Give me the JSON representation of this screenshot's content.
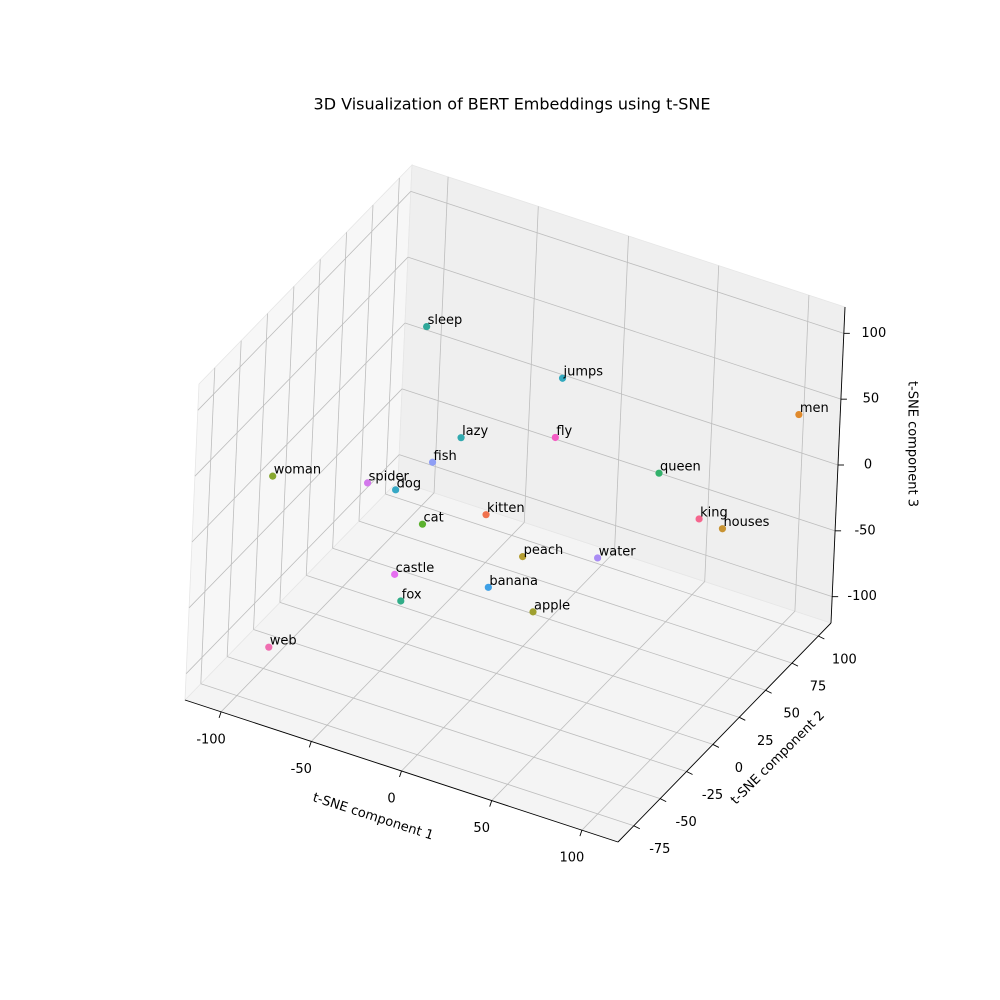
{
  "chart_data": {
    "type": "scatter3d",
    "title": "3D Visualization of BERT Embeddings using t-SNE",
    "xlabel": "t-SNE component 1",
    "ylabel": "t-SNE component 2",
    "zlabel": "t-SNE component 3",
    "xlim": [
      -120,
      120
    ],
    "ylim": [
      -90,
      112
    ],
    "zlim": [
      -120,
      120
    ],
    "xticks": [
      -100,
      -50,
      0,
      50,
      100
    ],
    "yticks": [
      -75,
      -50,
      -25,
      0,
      25,
      50,
      75,
      100
    ],
    "zticks": [
      -100,
      -50,
      0,
      50,
      100
    ],
    "grid": true,
    "points": [
      {
        "label": "sleep",
        "x": -74,
        "y": 50,
        "z": 69,
        "color": "#2fa89a"
      },
      {
        "label": "jumps",
        "x": -4,
        "y": 60,
        "z": 53,
        "color": "#33a9be"
      },
      {
        "label": "men",
        "x": 104,
        "y": 100,
        "z": 41,
        "color": "#e08a2c"
      },
      {
        "label": "lazy",
        "x": -47,
        "y": 40,
        "z": 5,
        "color": "#32aab0"
      },
      {
        "label": "fly",
        "x": 10,
        "y": 30,
        "z": 39,
        "color": "#f45cc4"
      },
      {
        "label": "fish",
        "x": -51,
        "y": 20,
        "z": 1,
        "color": "#8e9ef5"
      },
      {
        "label": "queen",
        "x": 62,
        "y": 40,
        "z": 27,
        "color": "#33b16b"
      },
      {
        "label": "woman",
        "x": -94,
        "y": -60,
        "z": 37,
        "color": "#87a72f"
      },
      {
        "label": "spider",
        "x": -75,
        "y": 0,
        "z": -9,
        "color": "#d378ec"
      },
      {
        "label": "dog",
        "x": -65,
        "y": 10,
        "z": -18,
        "color": "#36a8c5"
      },
      {
        "label": "kitten",
        "x": -4,
        "y": -10,
        "z": 7,
        "color": "#f0724e"
      },
      {
        "label": "king",
        "x": 96,
        "y": 20,
        "z": 24,
        "color": "#f5668e"
      },
      {
        "label": "houses",
        "x": 98,
        "y": 40,
        "z": 1,
        "color": "#c89332"
      },
      {
        "label": "cat",
        "x": -33,
        "y": -20,
        "z": -5,
        "color": "#5bb12f"
      },
      {
        "label": "peach",
        "x": 28,
        "y": -30,
        "z": 6,
        "color": "#b49d31"
      },
      {
        "label": "water",
        "x": 58,
        "y": -10,
        "z": 2,
        "color": "#a98cf4"
      },
      {
        "label": "castle",
        "x": -36,
        "y": -40,
        "z": -28,
        "color": "#e56ef0"
      },
      {
        "label": "banana",
        "x": 21,
        "y": -50,
        "z": -4,
        "color": "#3ea0e6"
      },
      {
        "label": "fox",
        "x": -21,
        "y": -60,
        "z": -25,
        "color": "#31ad88"
      },
      {
        "label": "apple",
        "x": 57,
        "y": -70,
        "z": 10,
        "color": "#9fa030"
      },
      {
        "label": "web",
        "x": -92,
        "y": -60,
        "z": -92,
        "color": "#f06eb1"
      }
    ]
  }
}
